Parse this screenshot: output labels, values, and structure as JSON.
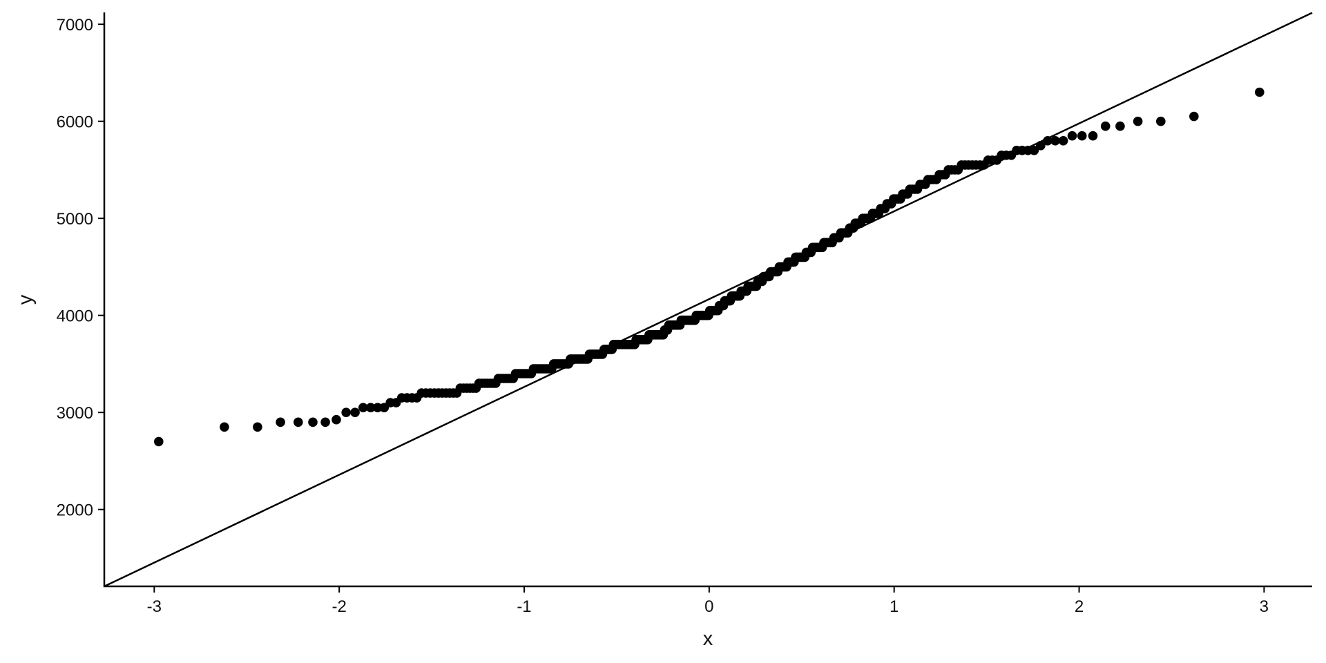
{
  "chart_data": {
    "type": "scatter",
    "subtype": "normal-qq",
    "title": "",
    "xlabel": "x",
    "ylabel": "y",
    "xlim": [
      -3.27,
      3.26
    ],
    "ylim": [
      1208,
      7122
    ],
    "x_ticks": [
      -3,
      -2,
      -1,
      0,
      1,
      2,
      3
    ],
    "x_tick_labels": [
      "-3",
      "-2",
      "-1",
      "0",
      "1",
      "2",
      "3"
    ],
    "y_ticks": [
      2000,
      3000,
      4000,
      5000,
      6000,
      7000
    ],
    "y_tick_labels": [
      "2000",
      "3000",
      "4000",
      "5000",
      "6000",
      "7000"
    ],
    "grid": false,
    "legend": "none",
    "point_color": "#000000",
    "line_color": "#000000",
    "reference_line": {
      "intercept": 4166,
      "slope": 905.7
    },
    "sample_values": [
      {
        "y": 2700,
        "count": 1
      },
      {
        "y": 2850,
        "count": 2
      },
      {
        "y": 2900,
        "count": 4
      },
      {
        "y": 2925,
        "count": 1
      },
      {
        "y": 3000,
        "count": 2
      },
      {
        "y": 3050,
        "count": 4
      },
      {
        "y": 3100,
        "count": 2
      },
      {
        "y": 3150,
        "count": 4
      },
      {
        "y": 3200,
        "count": 10
      },
      {
        "y": 3250,
        "count": 6
      },
      {
        "y": 3300,
        "count": 7
      },
      {
        "y": 3350,
        "count": 7
      },
      {
        "y": 3400,
        "count": 8
      },
      {
        "y": 3450,
        "count": 10
      },
      {
        "y": 3500,
        "count": 9
      },
      {
        "y": 3550,
        "count": 11
      },
      {
        "y": 3600,
        "count": 9
      },
      {
        "y": 3650,
        "count": 6
      },
      {
        "y": 3700,
        "count": 15
      },
      {
        "y": 3750,
        "count": 9
      },
      {
        "y": 3800,
        "count": 11
      },
      {
        "y": 3850,
        "count": 3
      },
      {
        "y": 3900,
        "count": 9
      },
      {
        "y": 3950,
        "count": 11
      },
      {
        "y": 4000,
        "count": 10
      },
      {
        "y": 4050,
        "count": 7
      },
      {
        "y": 4100,
        "count": 4
      },
      {
        "y": 4150,
        "count": 5
      },
      {
        "y": 4200,
        "count": 7
      },
      {
        "y": 4250,
        "count": 5
      },
      {
        "y": 4300,
        "count": 7
      },
      {
        "y": 4350,
        "count": 4
      },
      {
        "y": 4400,
        "count": 5
      },
      {
        "y": 4450,
        "count": 6
      },
      {
        "y": 4500,
        "count": 6
      },
      {
        "y": 4550,
        "count": 5
      },
      {
        "y": 4600,
        "count": 7
      },
      {
        "y": 4650,
        "count": 4
      },
      {
        "y": 4700,
        "count": 7
      },
      {
        "y": 4750,
        "count": 6
      },
      {
        "y": 4800,
        "count": 4
      },
      {
        "y": 4850,
        "count": 5
      },
      {
        "y": 4900,
        "count": 3
      },
      {
        "y": 4950,
        "count": 4
      },
      {
        "y": 5000,
        "count": 5
      },
      {
        "y": 5050,
        "count": 4
      },
      {
        "y": 5100,
        "count": 3
      },
      {
        "y": 5150,
        "count": 3
      },
      {
        "y": 5200,
        "count": 4
      },
      {
        "y": 5250,
        "count": 3
      },
      {
        "y": 5300,
        "count": 4
      },
      {
        "y": 5350,
        "count": 3
      },
      {
        "y": 5400,
        "count": 4
      },
      {
        "y": 5450,
        "count": 3
      },
      {
        "y": 5500,
        "count": 4
      },
      {
        "y": 5550,
        "count": 7
      },
      {
        "y": 5600,
        "count": 3
      },
      {
        "y": 5650,
        "count": 3
      },
      {
        "y": 5700,
        "count": 4
      },
      {
        "y": 5750,
        "count": 1
      },
      {
        "y": 5800,
        "count": 3
      },
      {
        "y": 5850,
        "count": 3
      },
      {
        "y": 5950,
        "count": 2
      },
      {
        "y": 6000,
        "count": 2
      },
      {
        "y": 6050,
        "count": 1
      },
      {
        "y": 6300,
        "count": 1
      }
    ]
  }
}
